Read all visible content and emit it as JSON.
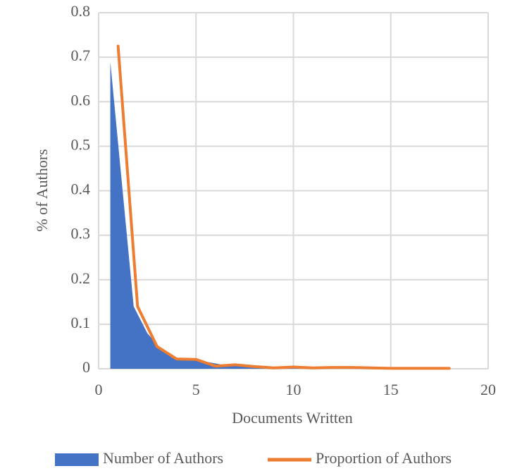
{
  "chart_data": {
    "type": "area-line",
    "x_label": "Documents Written",
    "y_label": "% of Authors",
    "xlim": [
      0,
      20
    ],
    "xticks": [
      0,
      5,
      10,
      15,
      20
    ],
    "ylim": [
      0,
      0.8
    ],
    "yticks": [
      0,
      0.1,
      0.2,
      0.3,
      0.4,
      0.5,
      0.6,
      0.7,
      0.8
    ],
    "grid": true,
    "legend": "bottom",
    "series": [
      {
        "name": "Number of Authors",
        "kind": "area",
        "color": "#4472c4",
        "x": [
          0.6,
          1.8,
          2.5,
          3.1,
          4.2,
          5,
          6.5,
          8,
          9,
          10,
          11,
          13,
          15,
          18
        ],
        "values": [
          0.69,
          0.14,
          0.08,
          0.05,
          0.02,
          0.02,
          0.008,
          0.004,
          0.002,
          0.003,
          0.002,
          0.001,
          0.001,
          0.001
        ]
      },
      {
        "name": "Proportion of Authors",
        "kind": "line",
        "color": "#ed7d31",
        "x": [
          1,
          2,
          3,
          4,
          5,
          6,
          7,
          8,
          9,
          10,
          11,
          12,
          13,
          14,
          15,
          16,
          17,
          18
        ],
        "values": [
          0.725,
          0.14,
          0.05,
          0.022,
          0.021,
          0.006,
          0.009,
          0.005,
          0.002,
          0.004,
          0.002,
          0.003,
          0.003,
          0.002,
          0.001,
          0.001,
          0.001,
          0.001
        ]
      }
    ]
  }
}
